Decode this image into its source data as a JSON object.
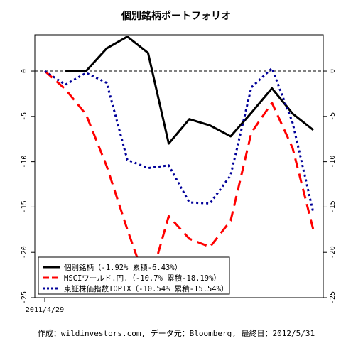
{
  "chart_data": {
    "type": "line",
    "title": "個別銘柄ポートフォリオ",
    "caption": "作成：wildinvestors.com, データ元：Bloomberg, 最終日：2012/5/31",
    "x_tick_label": "2011/4/29",
    "ylim": [
      -25,
      4
    ],
    "yticks": [
      0,
      -5,
      -10,
      -15,
      -20,
      -25
    ],
    "x": [
      0,
      1,
      2,
      3,
      4,
      5,
      6,
      7,
      8,
      9,
      10,
      11,
      12,
      13
    ],
    "series": [
      {
        "name": "個別銘柄（-1.92% 累積-6.43%）",
        "color": "#000000",
        "style": "solid",
        "values": [
          null,
          0,
          0,
          2.5,
          3.8,
          2.0,
          -8.0,
          -5.3,
          -6.0,
          -7.2,
          -4.6,
          -1.9,
          -4.7,
          -6.5
        ]
      },
      {
        "name": "MSCIワールド.円.（-10.7% 累積-18.19%）",
        "color": "#ff0000",
        "style": "dashed",
        "values": [
          0,
          -2.0,
          -4.8,
          -10.5,
          -17.5,
          -24.0,
          -16.0,
          -18.5,
          -19.4,
          -16.5,
          -6.8,
          -3.5,
          -8.5,
          -17.5
        ]
      },
      {
        "name": "東証株価指数TOPIX（-10.54% 累積-15.54%）",
        "color": "#000099",
        "style": "dotted",
        "values": [
          0,
          -1.5,
          -0.2,
          -1.3,
          -9.8,
          -10.7,
          -10.4,
          -14.5,
          -14.6,
          -11.5,
          -1.8,
          0.3,
          -5.7,
          -15.6
        ]
      }
    ],
    "reference_line": {
      "value": 0,
      "style": "dashed"
    },
    "legend_position": "bottom-left"
  }
}
